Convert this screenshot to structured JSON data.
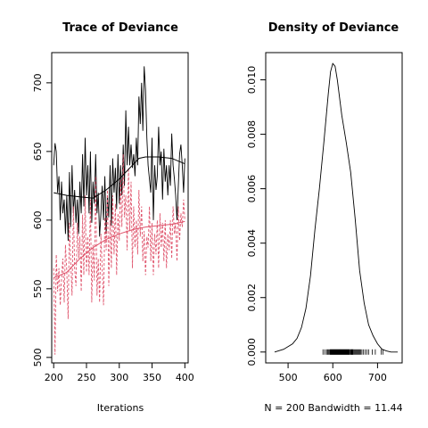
{
  "chart_data": [
    {
      "type": "line",
      "title": "Trace of Deviance",
      "xlabel": "Iterations",
      "ylabel": "",
      "xlim": [
        197,
        405
      ],
      "ylim": [
        496,
        722
      ],
      "x_ticks": [
        "200",
        "250",
        "300",
        "350",
        "400"
      ],
      "y_ticks": [
        "500",
        "550",
        "600",
        "650",
        "700"
      ],
      "series": [
        {
          "color": "#000000",
          "style": "solid",
          "x": [
            200,
            202,
            204,
            206,
            208,
            210,
            212,
            214,
            216,
            218,
            220,
            222,
            224,
            226,
            228,
            230,
            232,
            234,
            236,
            238,
            240,
            242,
            244,
            246,
            248,
            250,
            252,
            254,
            256,
            258,
            260,
            262,
            264,
            266,
            268,
            270,
            272,
            274,
            276,
            278,
            280,
            282,
            284,
            286,
            288,
            290,
            292,
            294,
            296,
            298,
            300,
            302,
            304,
            306,
            308,
            310,
            312,
            314,
            316,
            318,
            320,
            322,
            324,
            326,
            328,
            330,
            332,
            334,
            336,
            338,
            340,
            342,
            344,
            346,
            348,
            350,
            352,
            354,
            356,
            358,
            360,
            362,
            364,
            366,
            368,
            370,
            372,
            374,
            376,
            378,
            380,
            382,
            384,
            386,
            388,
            390,
            392,
            394,
            396,
            398,
            400
          ],
          "values": [
            640,
            656,
            650,
            620,
            632,
            600,
            628,
            605,
            615,
            590,
            618,
            585,
            635,
            595,
            640,
            605,
            622,
            598,
            615,
            590,
            628,
            605,
            648,
            610,
            660,
            618,
            640,
            605,
            650,
            598,
            628,
            612,
            648,
            605,
            620,
            588,
            605,
            625,
            600,
            632,
            590,
            618,
            602,
            640,
            596,
            645,
            620,
            638,
            608,
            648,
            612,
            640,
            618,
            655,
            625,
            680,
            640,
            668,
            640,
            655,
            638,
            648,
            632,
            660,
            640,
            690,
            670,
            700,
            665,
            712,
            695,
            660,
            640,
            630,
            620,
            660,
            600,
            640,
            622,
            632,
            668,
            640,
            650,
            615,
            652,
            628,
            640,
            618,
            640,
            625,
            663,
            640,
            630,
            618,
            600,
            625,
            648,
            655,
            640,
            620,
            645
          ]
        },
        {
          "color": "#DF536B",
          "style": "dashed",
          "x": [
            200,
            202,
            204,
            206,
            208,
            210,
            212,
            214,
            216,
            218,
            220,
            222,
            224,
            226,
            228,
            230,
            232,
            234,
            236,
            238,
            240,
            242,
            244,
            246,
            248,
            250,
            252,
            254,
            256,
            258,
            260,
            262,
            264,
            266,
            268,
            270,
            272,
            274,
            276,
            278,
            280,
            282,
            284,
            286,
            288,
            290,
            292,
            294,
            296,
            298,
            300,
            302,
            304,
            306,
            308,
            310,
            312,
            314,
            316,
            318,
            320,
            322,
            324,
            326,
            328,
            330,
            332,
            334,
            336,
            338,
            340,
            342,
            344,
            346,
            348,
            350,
            352,
            354,
            356,
            358,
            360,
            362,
            364,
            366,
            368,
            370,
            372,
            374,
            376,
            378,
            380,
            382,
            384,
            386,
            388,
            390,
            392,
            394,
            396,
            398,
            400
          ],
          "values": [
            565,
            502,
            575,
            548,
            565,
            538,
            558,
            572,
            540,
            582,
            563,
            528,
            598,
            570,
            545,
            610,
            565,
            552,
            598,
            572,
            588,
            548,
            604,
            560,
            618,
            562,
            588,
            560,
            615,
            540,
            582,
            556,
            632,
            545,
            572,
            540,
            590,
            565,
            538,
            602,
            578,
            622,
            552,
            600,
            565,
            618,
            575,
            612,
            560,
            605,
            585,
            630,
            595,
            648,
            602,
            618,
            578,
            638,
            592,
            628,
            565,
            610,
            580,
            600,
            575,
            622,
            588,
            610,
            570,
            592,
            560,
            588,
            580,
            610,
            570,
            598,
            560,
            590,
            575,
            600,
            565,
            605,
            580,
            598,
            570,
            600,
            565,
            590,
            578,
            600,
            572,
            610,
            590,
            598,
            570,
            610,
            585,
            605,
            595,
            615,
            600
          ]
        },
        {
          "color": "#000000",
          "style": "smooth",
          "x": [
            200,
            220,
            240,
            260,
            280,
            300,
            320,
            330,
            340,
            360,
            380,
            400
          ],
          "values": [
            620,
            618,
            617,
            616,
            622,
            630,
            640,
            645,
            646,
            646,
            645,
            641
          ]
        },
        {
          "color": "#DF536B",
          "style": "smooth",
          "x": [
            200,
            220,
            240,
            260,
            280,
            300,
            320,
            340,
            360,
            380,
            400
          ],
          "values": [
            558,
            562,
            572,
            580,
            586,
            590,
            593,
            595,
            596,
            597,
            599
          ]
        }
      ]
    },
    {
      "type": "line",
      "title": "Density of Deviance",
      "xlabel": "N = 200   Bandwidth = 11.44",
      "ylabel": "",
      "xlim": [
        450,
        755
      ],
      "ylim": [
        -0.0004,
        0.011
      ],
      "x_ticks": [
        "500",
        "600",
        "700"
      ],
      "y_ticks": [
        "0.000",
        "0.002",
        "0.004",
        "0.006",
        "0.008",
        "0.010"
      ],
      "series": [
        {
          "color": "#000000",
          "style": "solid",
          "x": [
            470,
            490,
            510,
            520,
            530,
            540,
            550,
            560,
            570,
            580,
            590,
            595,
            600,
            605,
            610,
            620,
            630,
            640,
            650,
            660,
            670,
            680,
            690,
            700,
            710,
            720,
            730,
            740,
            745
          ],
          "values": [
            0.0,
            0.0001,
            0.0003,
            0.0005,
            0.0009,
            0.0016,
            0.0028,
            0.0045,
            0.006,
            0.0077,
            0.0095,
            0.0103,
            0.0106,
            0.0105,
            0.01,
            0.0087,
            0.0077,
            0.0066,
            0.0049,
            0.003,
            0.0018,
            0.001,
            0.0006,
            0.0003,
            0.0001,
            4e-05,
            0.0,
            0.0,
            0.0
          ]
        }
      ],
      "rug": [
        578,
        582,
        586,
        588,
        590,
        592,
        594,
        595,
        596,
        597,
        598,
        599,
        600,
        601,
        602,
        603,
        604,
        605,
        606,
        607,
        608,
        609,
        610,
        611,
        612,
        613,
        614,
        615,
        616,
        617,
        618,
        619,
        620,
        621,
        622,
        623,
        624,
        625,
        626,
        627,
        628,
        629,
        630,
        631,
        632,
        633,
        634,
        635,
        636,
        637,
        638,
        640,
        641,
        642,
        643,
        644,
        645,
        646,
        648,
        650,
        652,
        654,
        656,
        658,
        660,
        662,
        665,
        668,
        672,
        676,
        680,
        688,
        695,
        708,
        712
      ]
    }
  ]
}
